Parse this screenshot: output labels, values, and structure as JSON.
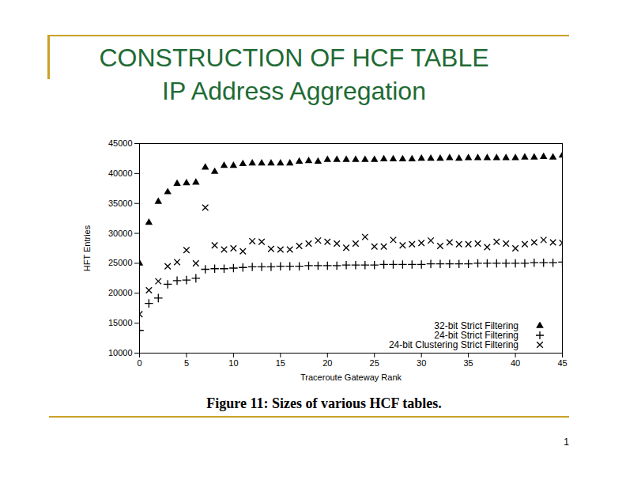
{
  "chart_data": {
    "type": "scatter",
    "title": "CONSTRUCTION OF HCF TABLE",
    "subtitle": "IP Address Aggregation",
    "caption": "Figure 11: Sizes of various HCF tables.",
    "page_number": "1",
    "x_label": "Traceroute Gateway Rank",
    "y_label": "HFT Entries",
    "x": [
      0,
      1,
      2,
      3,
      4,
      5,
      6,
      7,
      8,
      9,
      10,
      11,
      12,
      13,
      14,
      15,
      16,
      17,
      18,
      19,
      20,
      21,
      22,
      23,
      24,
      25,
      26,
      27,
      28,
      29,
      30,
      31,
      32,
      33,
      34,
      35,
      36,
      37,
      38,
      39,
      40,
      41,
      42,
      43,
      44,
      45
    ],
    "series": [
      {
        "name": "32-bit Strict Filtering",
        "color": "#000000",
        "marker": "triangle",
        "values": [
          25000,
          31800,
          35300,
          36900,
          38300,
          38400,
          38500,
          41000,
          40300,
          41300,
          41300,
          41600,
          41700,
          41700,
          41700,
          41700,
          41700,
          42000,
          42100,
          42000,
          42300,
          42300,
          42300,
          42300,
          42300,
          42300,
          42400,
          42400,
          42400,
          42400,
          42500,
          42500,
          42500,
          42600,
          42500,
          42600,
          42600,
          42600,
          42600,
          42600,
          42600,
          42700,
          42700,
          42800,
          42700,
          43000
        ]
      },
      {
        "name": "24-bit Strict Filtering",
        "color": "#000000",
        "marker": "plus",
        "values": [
          13800,
          18300,
          19200,
          21500,
          22100,
          22200,
          22500,
          24000,
          24100,
          24100,
          24200,
          24300,
          24400,
          24400,
          24400,
          24500,
          24500,
          24500,
          24600,
          24600,
          24600,
          24600,
          24700,
          24700,
          24700,
          24700,
          24800,
          24800,
          24800,
          24800,
          24800,
          24900,
          24900,
          24900,
          24900,
          24900,
          25000,
          25000,
          25000,
          25000,
          25000,
          25000,
          25100,
          25100,
          25100,
          25200
        ]
      },
      {
        "name": "24-bit Clustering Strict Filtering",
        "color": "#000000",
        "marker": "times",
        "values": [
          16500,
          20500,
          22000,
          24500,
          25200,
          27200,
          25000,
          34300,
          28000,
          27300,
          27500,
          27000,
          28700,
          28600,
          27400,
          27300,
          27300,
          27900,
          28300,
          28800,
          28600,
          28300,
          27600,
          28300,
          29400,
          27800,
          27800,
          28900,
          28000,
          28200,
          28400,
          28800,
          27900,
          28500,
          28200,
          28200,
          28300,
          27700,
          28600,
          28300,
          27500,
          28200,
          28500,
          28900,
          28500,
          28400
        ]
      }
    ],
    "xlim": [
      0,
      45
    ],
    "xticks": [
      0,
      5,
      10,
      15,
      20,
      25,
      30,
      35,
      40,
      45
    ],
    "ylim": [
      10000,
      45000
    ],
    "yticks": [
      10000,
      15000,
      20000,
      25000,
      30000,
      35000,
      40000,
      45000
    ],
    "grid": false,
    "legend": "bottom-right"
  }
}
